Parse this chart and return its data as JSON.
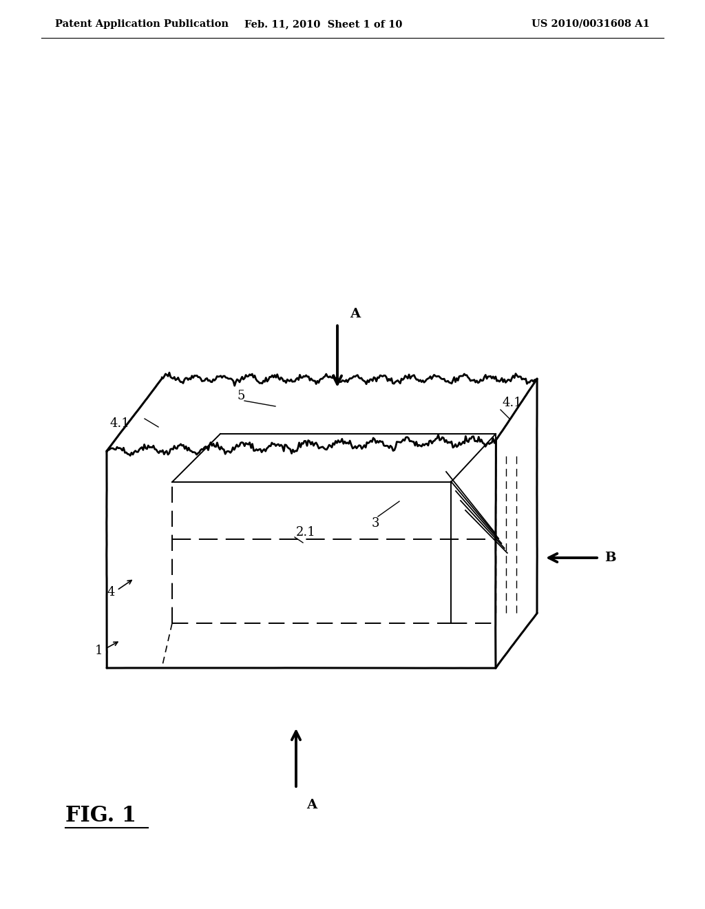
{
  "background_color": "#ffffff",
  "header_left": "Patent Application Publication",
  "header_mid": "Feb. 11, 2010  Sheet 1 of 10",
  "header_right": "US 2010/0031608 A1",
  "header_fontsize": 10.5,
  "figure_label": "FIG. 1",
  "figure_label_fontsize": 22,
  "label_fontsize": 13
}
